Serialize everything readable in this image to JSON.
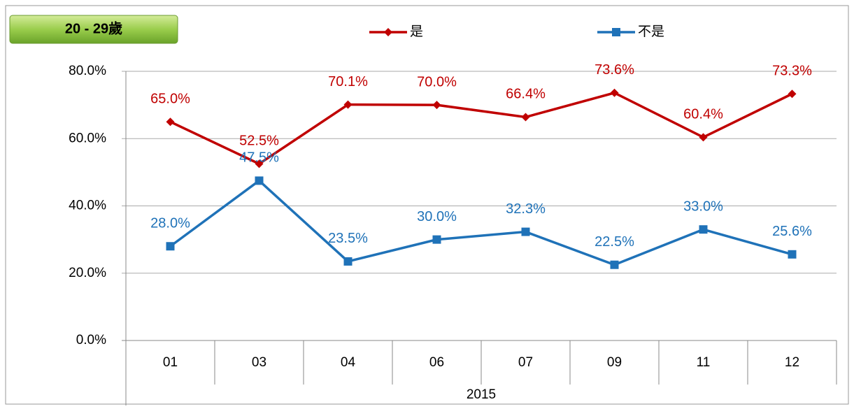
{
  "chart_data": {
    "type": "line",
    "title": "20 - 29歲",
    "categories": [
      "01",
      "03",
      "04",
      "06",
      "07",
      "09",
      "11",
      "12"
    ],
    "category_group": "2015",
    "series": [
      {
        "name": "是",
        "color": "#c00000",
        "marker": "diamond",
        "values": [
          65.0,
          52.5,
          70.1,
          70.0,
          66.4,
          73.6,
          60.4,
          73.3
        ],
        "value_labels": [
          "65.0%",
          "52.5%",
          "70.1%",
          "70.0%",
          "66.4%",
          "73.6%",
          "60.4%",
          "73.3%"
        ]
      },
      {
        "name": "不是",
        "color": "#1f72b8",
        "marker": "square",
        "values": [
          28.0,
          47.5,
          23.5,
          30.0,
          32.3,
          22.5,
          33.0,
          25.6
        ],
        "value_labels": [
          "28.0%",
          "47.5%",
          "23.5%",
          "30.0%",
          "32.3%",
          "22.5%",
          "33.0%",
          "25.6%"
        ]
      }
    ],
    "ylim": [
      0,
      80
    ],
    "yticks": [
      {
        "value": 0,
        "label": "0.0%"
      },
      {
        "value": 20,
        "label": "20.0%"
      },
      {
        "value": 40,
        "label": "40.0%"
      },
      {
        "value": 60,
        "label": "60.0%"
      },
      {
        "value": 80,
        "label": "80.0%"
      }
    ],
    "grid": true
  }
}
